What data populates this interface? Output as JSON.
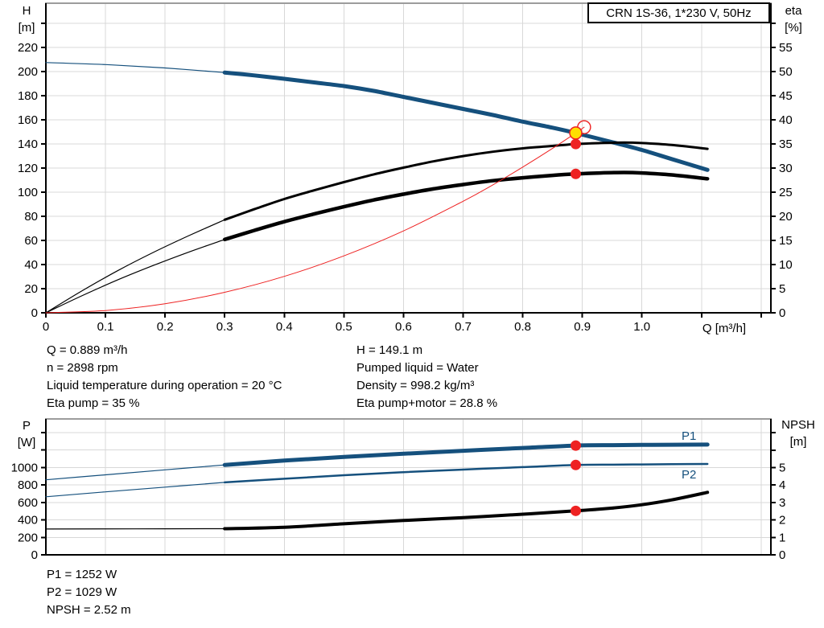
{
  "title_box": "CRN 1S-36, 1*230 V, 50Hz",
  "colors": {
    "curve_blue": "#15507d",
    "curve_black": "#000000",
    "curve_red": "#ee2222",
    "duty_yellow": "#ffdf00",
    "grid": "#d8d8d8",
    "frame_gray": "#9c9c9c",
    "axis_black": "#000000",
    "label_blue": "#15507d"
  },
  "axis_titles": {
    "h": "H",
    "h_unit": "[m]",
    "eta": "eta",
    "eta_unit": "[%]",
    "q": "Q [m³/h]",
    "p": "P",
    "p_unit": "[W]",
    "npsh": "NPSH",
    "npsh_unit": "[m]"
  },
  "series_labels": {
    "p1": "P1",
    "p2": "P2"
  },
  "info": {
    "left": [
      "Q = 0.889 m³/h",
      "n = 2898 rpm",
      "Liquid temperature during operation = 20 °C",
      "Eta pump = 35 %"
    ],
    "right": [
      "H = 149.1 m",
      "Pumped liquid = Water",
      "Density = 998.2 kg/m³",
      "Eta pump+motor = 28.8 %"
    ]
  },
  "results": [
    "P1 = 1252 W",
    "P2 = 1029 W",
    "NPSH = 2.52 m"
  ],
  "duty_point": {
    "Q": 0.889,
    "H": 149.1,
    "eta_pump": 35,
    "eta_pump_motor": 28.8,
    "P1": 1252,
    "P2": 1029,
    "NPSH": 2.52,
    "n_rpm": 2898
  },
  "chart_data": [
    {
      "type": "line",
      "name": "qh-eta-chart",
      "title": "CRN 1S-36, 1*230 V, 50Hz",
      "xlabel": "Q [m³/h]",
      "x": {
        "min": 0,
        "max": 1.2164,
        "grid_step": 0.1,
        "tick_step": 0.1,
        "tick_max": 1.2,
        "label_max": 1.0,
        "show_ticks": true
      },
      "left": {
        "title": "H [m]",
        "min": 0,
        "max": 256.7,
        "tick_step": 20,
        "tick_max": 240,
        "label_max": 220
      },
      "right": {
        "title": "eta [%]",
        "min": 0,
        "max": 64.2,
        "tick_step": 5,
        "tick_max": 60,
        "label_max": 55
      },
      "series": [
        {
          "name": "h-q-curve-thin",
          "axis": "left",
          "color": "#15507d",
          "width": 1.2,
          "points": [
            [
              0,
              207.5
            ],
            [
              0.1,
              205.8
            ],
            [
              0.2,
              203.0
            ],
            [
              0.3,
              199.2
            ]
          ]
        },
        {
          "name": "h-q-curve",
          "axis": "left",
          "color": "#15507d",
          "width": 5,
          "points": [
            [
              0.3,
              199.2
            ],
            [
              0.35,
              196.8
            ],
            [
              0.4,
              194.0
            ],
            [
              0.45,
              191.0
            ],
            [
              0.5,
              188.0
            ],
            [
              0.55,
              184.0
            ],
            [
              0.6,
              179.0
            ],
            [
              0.65,
              174.0
            ],
            [
              0.7,
              169.0
            ],
            [
              0.75,
              164.0
            ],
            [
              0.8,
              158.5
            ],
            [
              0.85,
              153.5
            ],
            [
              0.889,
              149.1
            ],
            [
              0.95,
              141.5
            ],
            [
              1.0,
              135.0
            ],
            [
              1.05,
              127.5
            ],
            [
              1.11,
              118.5
            ]
          ]
        },
        {
          "name": "eta-pump-curve-thin",
          "axis": "right",
          "color": "#000000",
          "width": 1.2,
          "points": [
            [
              0,
              0
            ],
            [
              0.06,
              4.5
            ],
            [
              0.12,
              8.7
            ],
            [
              0.18,
              12.5
            ],
            [
              0.24,
              16.0
            ],
            [
              0.3,
              19.3
            ]
          ]
        },
        {
          "name": "eta-pump-curve",
          "axis": "right",
          "color": "#000000",
          "width": 3,
          "points": [
            [
              0.3,
              19.3
            ],
            [
              0.35,
              21.5
            ],
            [
              0.4,
              23.6
            ],
            [
              0.45,
              25.4
            ],
            [
              0.5,
              27.1
            ],
            [
              0.55,
              28.7
            ],
            [
              0.6,
              30.1
            ],
            [
              0.65,
              31.4
            ],
            [
              0.7,
              32.5
            ],
            [
              0.75,
              33.4
            ],
            [
              0.8,
              34.1
            ],
            [
              0.85,
              34.6
            ],
            [
              0.889,
              35.0
            ],
            [
              0.93,
              35.2
            ],
            [
              0.97,
              35.3
            ],
            [
              1.0,
              35.2
            ],
            [
              1.05,
              34.8
            ],
            [
              1.11,
              34.0
            ]
          ]
        },
        {
          "name": "eta-pump-motor-curve-thin",
          "axis": "right",
          "color": "#000000",
          "width": 1.2,
          "points": [
            [
              0,
              0
            ],
            [
              0.06,
              3.5
            ],
            [
              0.12,
              6.8
            ],
            [
              0.18,
              9.8
            ],
            [
              0.24,
              12.6
            ],
            [
              0.3,
              15.2
            ]
          ]
        },
        {
          "name": "eta-pump-motor-curve",
          "axis": "right",
          "color": "#000000",
          "width": 4.5,
          "points": [
            [
              0.3,
              15.2
            ],
            [
              0.35,
              17.1
            ],
            [
              0.4,
              18.9
            ],
            [
              0.45,
              20.5
            ],
            [
              0.5,
              22.0
            ],
            [
              0.55,
              23.4
            ],
            [
              0.6,
              24.6
            ],
            [
              0.65,
              25.7
            ],
            [
              0.7,
              26.6
            ],
            [
              0.75,
              27.4
            ],
            [
              0.8,
              28.0
            ],
            [
              0.85,
              28.5
            ],
            [
              0.889,
              28.8
            ],
            [
              0.93,
              29.0
            ],
            [
              0.97,
              29.1
            ],
            [
              1.0,
              29.0
            ],
            [
              1.05,
              28.6
            ],
            [
              1.11,
              27.8
            ]
          ]
        },
        {
          "name": "system-curve",
          "axis": "left",
          "color": "#ee2222",
          "width": 1,
          "points": [
            [
              0,
              0
            ],
            [
              0.1,
              1.9
            ],
            [
              0.2,
              7.5
            ],
            [
              0.3,
              17.0
            ],
            [
              0.4,
              30.2
            ],
            [
              0.5,
              47.2
            ],
            [
              0.6,
              67.9
            ],
            [
              0.7,
              92.5
            ],
            [
              0.75,
              106.1
            ],
            [
              0.8,
              120.8
            ],
            [
              0.85,
              136.3
            ],
            [
              0.889,
              149.1
            ],
            [
              0.903,
              153.9
            ]
          ]
        }
      ],
      "markers": [
        {
          "name": "requested-duty-marker",
          "axis": "left",
          "q": 0.903,
          "v": 153.9,
          "r": 8,
          "fill": "none",
          "stroke": "#ee2222",
          "sw": 1.4,
          "interactable": false
        },
        {
          "name": "duty-point-marker",
          "axis": "left",
          "q": 0.889,
          "v": 149.1,
          "r": 7.5,
          "fill": "#ffdf00",
          "stroke": "#ee2222",
          "sw": 1.5,
          "interactable": true
        },
        {
          "name": "eta-pump-operating-dot",
          "axis": "right",
          "q": 0.889,
          "v": 35,
          "r": 6.5,
          "fill": "#ee2222",
          "stroke": "none",
          "sw": 0,
          "interactable": false
        },
        {
          "name": "eta-pump-motor-operating-dot",
          "axis": "right",
          "q": 0.889,
          "v": 28.8,
          "r": 6.5,
          "fill": "#ee2222",
          "stroke": "none",
          "sw": 0,
          "interactable": false
        }
      ]
    },
    {
      "type": "line",
      "name": "power-npsh-chart",
      "xlabel": "",
      "x": {
        "min": 0,
        "max": 1.2164,
        "grid_step": 0.1,
        "show_ticks": false
      },
      "left": {
        "title": "P [W]",
        "min": 0,
        "max": 1557,
        "tick_step": 200,
        "tick_max": 1400,
        "label_max": 1000
      },
      "right": {
        "title": "NPSH [m]",
        "min": 0,
        "max": 7.79,
        "tick_step": 1,
        "tick_max": 7,
        "label_max": 5
      },
      "series": [
        {
          "name": "p1-curve-thin",
          "axis": "left",
          "color": "#15507d",
          "width": 1.2,
          "points": [
            [
              0,
              860
            ],
            [
              0.1,
              917
            ],
            [
              0.2,
              974
            ],
            [
              0.3,
              1030
            ]
          ]
        },
        {
          "name": "p1-curve",
          "axis": "left",
          "color": "#15507d",
          "width": 5,
          "points": [
            [
              0.3,
              1030
            ],
            [
              0.4,
              1080
            ],
            [
              0.5,
              1122
            ],
            [
              0.6,
              1158
            ],
            [
              0.7,
              1192
            ],
            [
              0.8,
              1224
            ],
            [
              0.889,
              1252
            ],
            [
              0.95,
              1257
            ],
            [
              1.0,
              1259
            ],
            [
              1.05,
              1261
            ],
            [
              1.11,
              1263
            ]
          ]
        },
        {
          "name": "p2-curve-thin",
          "axis": "left",
          "color": "#15507d",
          "width": 1.2,
          "points": [
            [
              0,
              665
            ],
            [
              0.1,
              721
            ],
            [
              0.2,
              776
            ],
            [
              0.3,
              830
            ]
          ]
        },
        {
          "name": "p2-curve",
          "axis": "left",
          "color": "#15507d",
          "width": 2.5,
          "points": [
            [
              0.3,
              830
            ],
            [
              0.4,
              872
            ],
            [
              0.5,
              912
            ],
            [
              0.6,
              947
            ],
            [
              0.7,
              977
            ],
            [
              0.8,
              1005
            ],
            [
              0.889,
              1029
            ],
            [
              0.95,
              1033
            ],
            [
              1.0,
              1036
            ],
            [
              1.05,
              1038
            ],
            [
              1.11,
              1041
            ]
          ]
        },
        {
          "name": "npsh-curve-thin",
          "axis": "right",
          "color": "#000000",
          "width": 1.2,
          "points": [
            [
              0,
              1.48
            ],
            [
              0.15,
              1.49
            ],
            [
              0.3,
              1.5
            ]
          ]
        },
        {
          "name": "npsh-curve",
          "axis": "right",
          "color": "#000000",
          "width": 4,
          "points": [
            [
              0.3,
              1.5
            ],
            [
              0.4,
              1.58
            ],
            [
              0.5,
              1.78
            ],
            [
              0.6,
              1.97
            ],
            [
              0.7,
              2.13
            ],
            [
              0.8,
              2.33
            ],
            [
              0.889,
              2.52
            ],
            [
              0.95,
              2.68
            ],
            [
              1.0,
              2.87
            ],
            [
              1.05,
              3.15
            ],
            [
              1.11,
              3.58
            ]
          ]
        }
      ],
      "markers": [
        {
          "name": "p1-operating-dot",
          "axis": "left",
          "q": 0.889,
          "v": 1252,
          "r": 6.5,
          "fill": "#ee2222",
          "stroke": "none",
          "sw": 0,
          "interactable": false
        },
        {
          "name": "p2-operating-dot",
          "axis": "left",
          "q": 0.889,
          "v": 1029,
          "r": 6.5,
          "fill": "#ee2222",
          "stroke": "none",
          "sw": 0,
          "interactable": false
        },
        {
          "name": "npsh-operating-dot",
          "axis": "right",
          "q": 0.889,
          "v": 2.52,
          "r": 6.5,
          "fill": "#ee2222",
          "stroke": "none",
          "sw": 0,
          "interactable": false
        }
      ]
    }
  ]
}
